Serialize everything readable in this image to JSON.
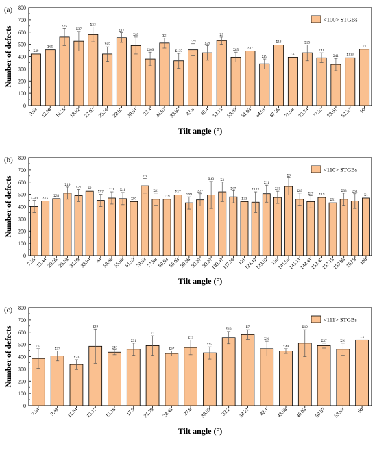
{
  "chart_data": [
    {
      "type": "bar",
      "panel_label": "(a)",
      "xlabel": "Tilt angle (°)",
      "ylabel": "Number of defects",
      "ylim": [
        0,
        800
      ],
      "yticks": [
        0,
        100,
        200,
        300,
        400,
        500,
        600,
        700,
        800
      ],
      "legend": "<100> STGBs",
      "legend_position": "top-right",
      "bar_color": "#FAC090",
      "categories": [
        "9.53",
        "12.68",
        "16.26",
        "18.92",
        "22.62",
        "25.06",
        "28.07",
        "30.51",
        "33.4",
        "36.87",
        "39.97",
        "43.6",
        "46.4",
        "53.13",
        "59.49",
        "61.93",
        "64.01",
        "67.38",
        "71.08",
        "73.74",
        "77.32",
        "79.61",
        "82.37",
        "90"
      ],
      "values": [
        420,
        455,
        560,
        525,
        580,
        420,
        555,
        490,
        380,
        510,
        365,
        455,
        430,
        530,
        395,
        445,
        340,
        495,
        395,
        430,
        390,
        335,
        390,
        460
      ],
      "errors": [
        0,
        0,
        70,
        80,
        60,
        60,
        40,
        70,
        55,
        40,
        60,
        50,
        60,
        30,
        40,
        0,
        40,
        0,
        0,
        65,
        40,
        50,
        0,
        0
      ],
      "bar_labels": [
        "Σ49",
        "Σ65",
        "Σ25",
        "Σ37",
        "Σ13",
        "Σ85",
        "Σ17",
        "Σ85",
        "Σ109",
        "Σ5",
        "Σ137",
        "Σ29",
        "Σ29",
        "Σ5",
        "Σ85",
        "Σ17",
        "Σ89",
        "Σ13",
        "Σ37",
        "Σ25",
        "Σ41",
        "Σ41",
        "Σ113",
        "Σ1"
      ]
    },
    {
      "type": "bar",
      "panel_label": "(b)",
      "xlabel": "Tilt angle (°)",
      "ylabel": "Number of defects",
      "ylim": [
        0,
        800
      ],
      "yticks": [
        0,
        100,
        200,
        300,
        400,
        500,
        600,
        700,
        800
      ],
      "legend": "<110> STGBs",
      "legend_position": "top-right",
      "bar_color": "#FAC090",
      "categories": [
        "7.35",
        "13.44",
        "20.05",
        "26.53",
        "31.59",
        "38.94",
        "44",
        "50.48",
        "55.88",
        "61.02",
        "70.53",
        "77.88",
        "80.63",
        "86.63",
        "90.58",
        "93.37",
        "99.37",
        "109.47",
        "117.56",
        "121",
        "124.12",
        "129.52",
        "136",
        "141.06",
        "145.11",
        "148.41",
        "153.47",
        "157.15",
        "159.95",
        "163.9",
        "180"
      ],
      "values": [
        400,
        445,
        465,
        510,
        490,
        525,
        450,
        470,
        465,
        440,
        570,
        460,
        460,
        495,
        430,
        455,
        495,
        520,
        480,
        440,
        435,
        505,
        475,
        565,
        460,
        440,
        475,
        430,
        460,
        445,
        470
      ],
      "errors": [
        50,
        0,
        0,
        50,
        50,
        0,
        50,
        50,
        50,
        0,
        60,
        50,
        0,
        0,
        50,
        50,
        110,
        80,
        50,
        0,
        85,
        70,
        50,
        70,
        50,
        50,
        0,
        0,
        50,
        60,
        0
      ],
      "bar_labels": [
        "Σ243",
        "Σ75",
        "Σ33",
        "Σ19",
        "Σ27",
        "Σ9",
        "Σ57",
        "Σ11",
        "Σ41",
        "Σ97",
        "Σ3",
        "Σ81",
        "Σ19",
        "Σ17",
        "Σ99",
        "Σ27",
        "Σ43",
        "Σ3",
        "Σ67",
        "Σ33",
        "Σ123",
        "Σ11",
        "Σ57",
        "Σ9",
        "Σ89",
        "Σ27",
        "Σ19",
        "Σ51",
        "Σ33",
        "Σ51",
        "Σ1"
      ]
    },
    {
      "type": "bar",
      "panel_label": "(c)",
      "xlabel": "Tilt angle (°)",
      "ylabel": "Number of defects",
      "ylim": [
        0,
        800
      ],
      "yticks": [
        0,
        100,
        200,
        300,
        400,
        500,
        600,
        700,
        800
      ],
      "legend": "<111> STGBs",
      "legend_position": "top-right",
      "bar_color": "#FAC090",
      "categories": [
        "7.34",
        "9.43",
        "11.64",
        "13.17",
        "15.18",
        "17.9",
        "21.79",
        "24.43",
        "27.8",
        "30.59",
        "32.2",
        "38.21",
        "42.1",
        "43.58",
        "46.83",
        "50.57",
        "53.99",
        "60"
      ],
      "values": [
        385,
        405,
        335,
        485,
        435,
        460,
        490,
        425,
        475,
        430,
        555,
        580,
        465,
        445,
        510,
        490,
        460,
        535
      ],
      "errors": [
        80,
        40,
        40,
        140,
        20,
        50,
        80,
        20,
        60,
        50,
        50,
        40,
        60,
        20,
        110,
        20,
        50,
        0
      ],
      "bar_labels": [
        "Σ61",
        "Σ37",
        "Σ73",
        "Σ19",
        "Σ43",
        "Σ31",
        "Σ7",
        "Σ67",
        "Σ13",
        "Σ97",
        "Σ13",
        "Σ7",
        "Σ91",
        "Σ49",
        "Σ19",
        "Σ37",
        "Σ91",
        "Σ3"
      ]
    }
  ]
}
